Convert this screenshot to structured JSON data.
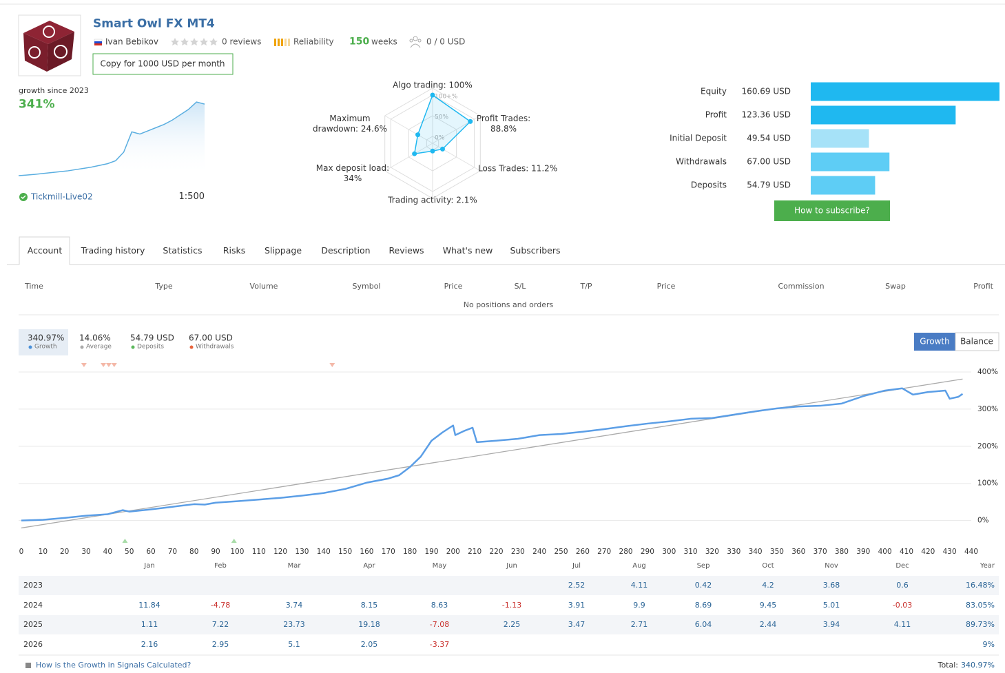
{
  "header": {
    "title": "Smart Owl FX MT4",
    "author": "Ivan Bebikov",
    "reviews": "0 reviews",
    "reliability": "Reliability",
    "weeks": {
      "value": 150,
      "label": "weeks"
    },
    "subscribers": "0 / 0 USD",
    "copy_button": "Copy for 1000 USD per month"
  },
  "summary": {
    "growth_label": "growth since 2023",
    "growth_value": "341%",
    "broker": "Tickmill-Live02",
    "leverage": "1:500",
    "sparkline": [
      0,
      3,
      6,
      10,
      14,
      18,
      22,
      28,
      34,
      40,
      48,
      56,
      70,
      110,
      205,
      195,
      210,
      225,
      240,
      260,
      285,
      310,
      345,
      335
    ]
  },
  "radar": {
    "ticks": [
      {
        "value": 0,
        "label": "0%"
      },
      {
        "value": 50,
        "label": "50%"
      },
      {
        "value": 100,
        "label": "100+%"
      }
    ],
    "axes": [
      {
        "label": "Algo trading: 100%",
        "value": 100
      },
      {
        "label": "Profit Trades: 88.8%",
        "value": 88.8
      },
      {
        "label": "Loss Trades: 11.2%",
        "value": 11.2
      },
      {
        "label": "Trading activity: 2.1%",
        "value": 2.1
      },
      {
        "label": "Max deposit load: 34%",
        "value": 34
      },
      {
        "label": "Maximum drawdown: 24.6%",
        "value": 24.6
      }
    ]
  },
  "balance_bars": {
    "items": [
      {
        "label": "Equity",
        "value": 160.69,
        "value_label": "160.69 USD",
        "color": "#1fb8f0"
      },
      {
        "label": "Profit",
        "value": 123.36,
        "value_label": "123.36 USD",
        "color": "#1fb8f0"
      },
      {
        "label": "Initial Deposit",
        "value": 49.54,
        "value_label": "49.54 USD",
        "color": "#a6e2f8"
      },
      {
        "label": "Withdrawals",
        "value": 67.0,
        "value_label": "67.00 USD",
        "color": "#5ecdf5"
      },
      {
        "label": "Deposits",
        "value": 54.79,
        "value_label": "54.79 USD",
        "color": "#5ecdf5"
      }
    ]
  },
  "subscribe_button": "How to subscribe?",
  "tabs": [
    "Account",
    "Trading history",
    "Statistics",
    "Risks",
    "Slippage",
    "Description",
    "Reviews",
    "What's new",
    "Subscribers"
  ],
  "positions": {
    "columns": [
      "Time",
      "Type",
      "Volume",
      "Symbol",
      "Price",
      "S/L",
      "T/P",
      "Price",
      "Commission",
      "Swap",
      "Profit"
    ],
    "empty": "No positions and orders"
  },
  "growth_chart": {
    "type": "line",
    "stats": [
      {
        "value": "340.97%",
        "label": "Growth",
        "color": "#4a90d9"
      },
      {
        "value": "14.06%",
        "label": "Average",
        "color": "#aaaaaa"
      },
      {
        "value": "54.79 USD",
        "label": "Deposits",
        "color": "#5cb85c"
      },
      {
        "value": "67.00 USD",
        "label": "Withdrawals",
        "color": "#e8643c"
      }
    ],
    "buttons": [
      "Growth",
      "Balance"
    ],
    "xlim": [
      0,
      440
    ],
    "xticks": [
      0,
      10,
      20,
      30,
      40,
      50,
      60,
      70,
      80,
      90,
      100,
      110,
      120,
      130,
      140,
      150,
      160,
      170,
      180,
      190,
      200,
      210,
      220,
      230,
      240,
      250,
      260,
      270,
      280,
      290,
      300,
      310,
      320,
      330,
      340,
      350,
      360,
      370,
      380,
      390,
      400,
      410,
      420,
      430,
      440
    ],
    "ylim": [
      -60,
      400
    ],
    "yticks": [
      {
        "value": 0,
        "label": "0%"
      },
      {
        "value": 100,
        "label": "100%"
      },
      {
        "value": 200,
        "label": "200%"
      },
      {
        "value": 300,
        "label": "300%"
      },
      {
        "value": 400,
        "label": "400%"
      }
    ],
    "series": [
      {
        "color": "#5b9ee6",
        "x": [
          0,
          10,
          20,
          30,
          40,
          47,
          50,
          60,
          70,
          80,
          85,
          90,
          100,
          120,
          130,
          140,
          150,
          160,
          170,
          175,
          180,
          185,
          190,
          195,
          200,
          201,
          205,
          209,
          211,
          220,
          230,
          240,
          250,
          260,
          270,
          280,
          290,
          300,
          310,
          320,
          330,
          340,
          350,
          360,
          370,
          380,
          390,
          400,
          408,
          413,
          420,
          428,
          430,
          434,
          436
        ],
        "values": [
          0,
          2,
          7,
          13,
          17,
          28,
          24,
          30,
          37,
          44,
          43,
          48,
          52,
          61,
          67,
          74,
          85,
          102,
          113,
          122,
          144,
          172,
          215,
          237,
          256,
          230,
          241,
          250,
          211,
          215,
          220,
          230,
          233,
          239,
          246,
          254,
          261,
          267,
          274,
          276,
          285,
          294,
          302,
          307,
          309,
          315,
          335,
          350,
          356,
          339,
          346,
          350,
          328,
          333,
          341
        ]
      },
      {
        "color": "#aaaaaa",
        "x": [
          0,
          436
        ],
        "values": [
          -20,
          381
        ]
      }
    ],
    "withdrawal_marks_x": [
      29,
      38,
      40.5,
      43,
      144
    ],
    "deposit_marks_x": [
      48,
      98.5
    ]
  },
  "monthly": {
    "columns": [
      "Jan",
      "Feb",
      "Mar",
      "Apr",
      "May",
      "Jun",
      "Jul",
      "Aug",
      "Sep",
      "Oct",
      "Nov",
      "Dec",
      "Year"
    ],
    "rows": [
      {
        "year": "2023",
        "values": [
          null,
          null,
          null,
          null,
          null,
          null,
          2.52,
          4.11,
          0.42,
          4.2,
          3.68,
          0.6
        ],
        "total": "16.48%"
      },
      {
        "year": "2024",
        "values": [
          11.84,
          -4.78,
          3.74,
          8.15,
          8.63,
          -1.13,
          3.91,
          9.9,
          8.69,
          9.45,
          5.01,
          -0.03
        ],
        "total": "83.05%"
      },
      {
        "year": "2025",
        "values": [
          1.11,
          7.22,
          23.73,
          19.18,
          -7.08,
          2.25,
          3.47,
          2.71,
          6.04,
          2.44,
          3.94,
          4.11
        ],
        "total": "89.73%"
      },
      {
        "year": "2026",
        "values": [
          2.16,
          2.95,
          5.1,
          2.05,
          -3.37,
          null,
          null,
          null,
          null,
          null,
          null,
          null
        ],
        "total": "9%"
      }
    ]
  },
  "footer": {
    "link": "How is the Growth in Signals Calculated?",
    "total_label": "Total:",
    "total_value": "340.97%"
  }
}
